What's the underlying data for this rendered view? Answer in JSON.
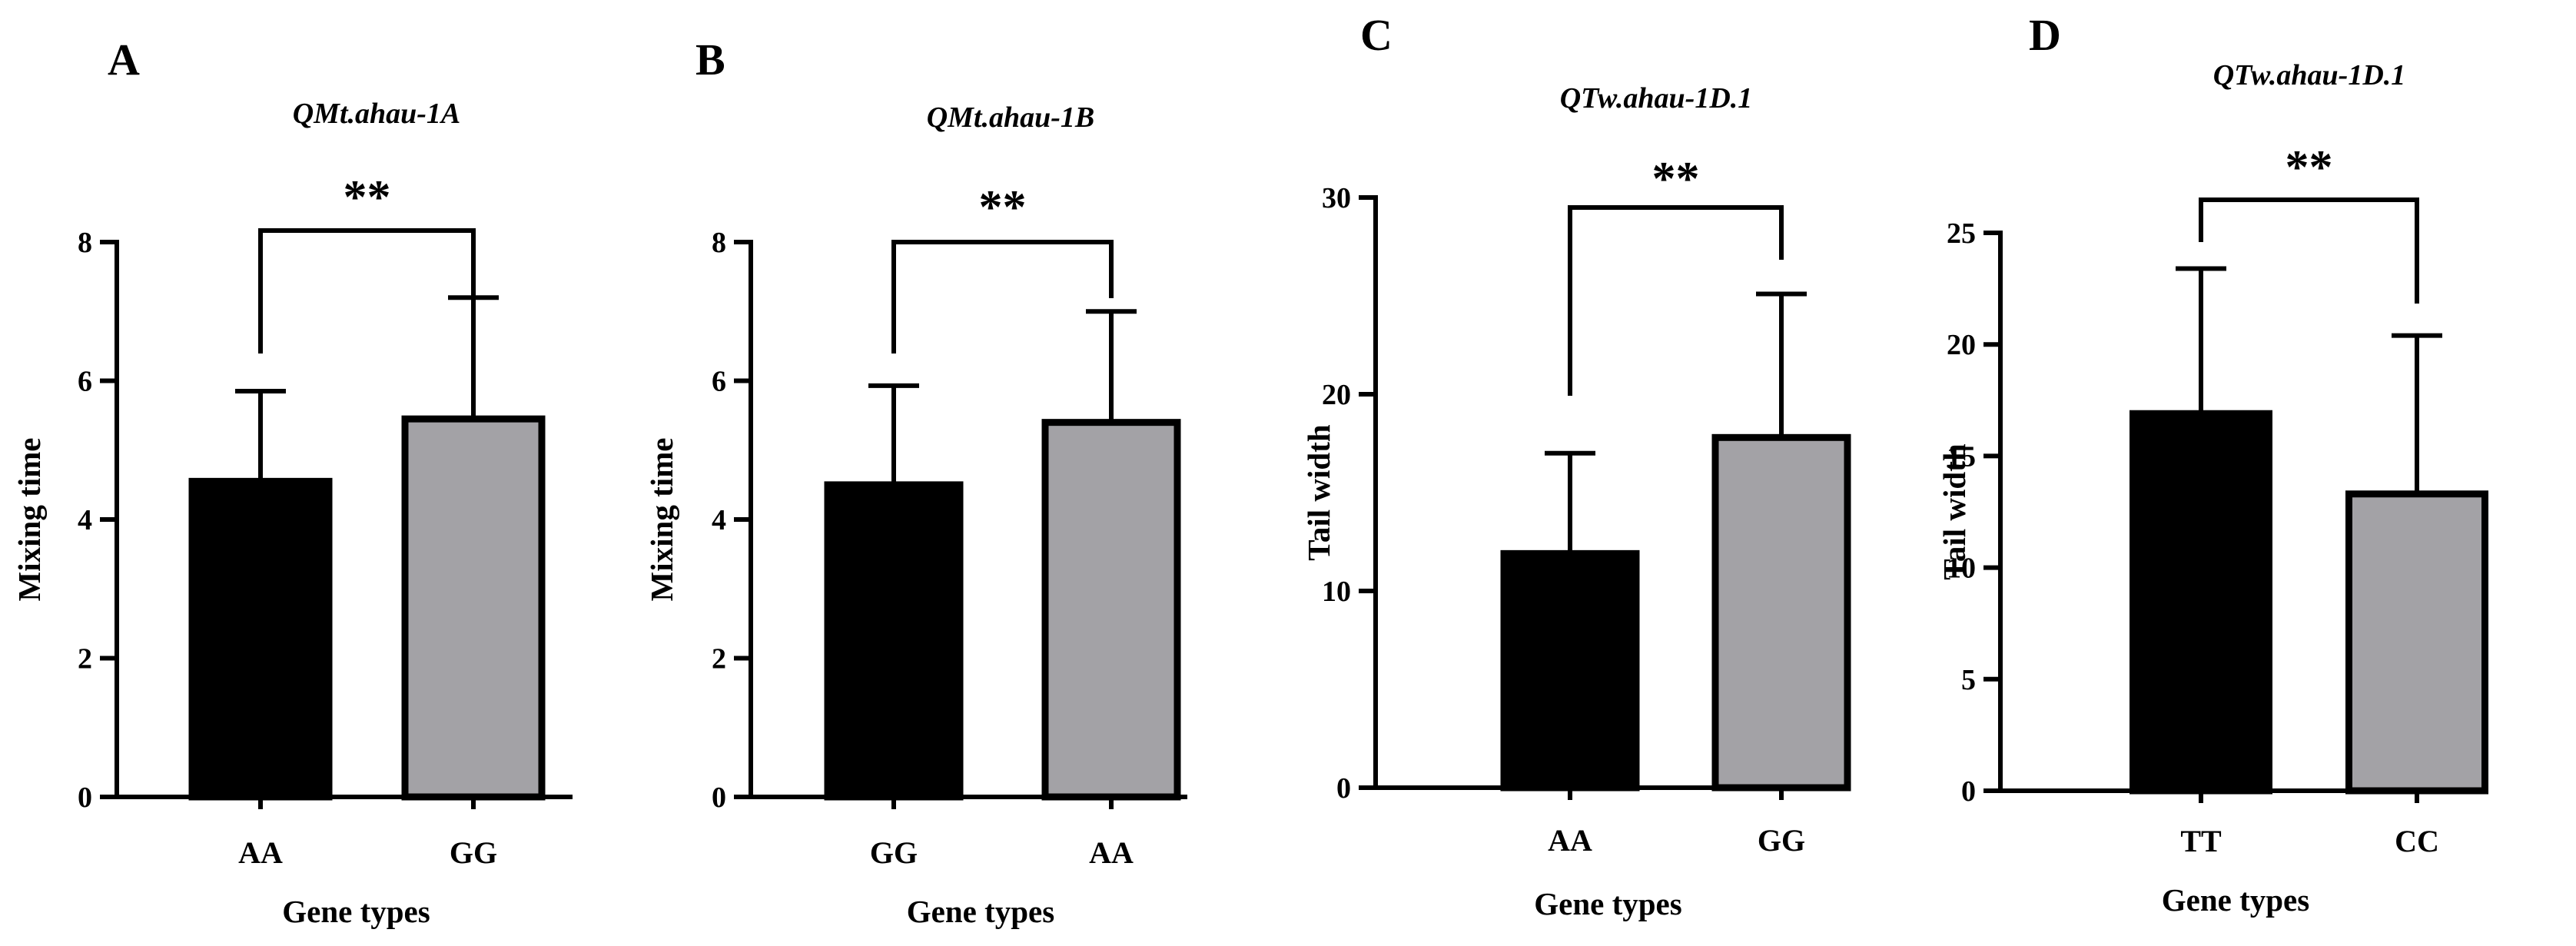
{
  "chart_data": [
    {
      "type": "bar",
      "panel": "A",
      "title": "QMt.ahau-1A",
      "xlabel": "Gene types",
      "ylabel": "Mixing time",
      "ylim": [
        0,
        8
      ],
      "yticks": [
        0,
        2,
        4,
        6,
        8
      ],
      "categories": [
        "AA",
        "GG"
      ],
      "values": [
        4.55,
        5.45
      ],
      "error": [
        1.3,
        1.75
      ],
      "colors": [
        "#000000",
        "#a3a2a6"
      ],
      "significance": "**"
    },
    {
      "type": "bar",
      "panel": "B",
      "title": "QMt.ahau-1B",
      "xlabel": "Gene types",
      "ylabel": "Mixing time",
      "ylim": [
        0,
        8
      ],
      "yticks": [
        0,
        2,
        4,
        6,
        8
      ],
      "categories": [
        "GG",
        "AA"
      ],
      "values": [
        4.5,
        5.4
      ],
      "error": [
        1.43,
        1.6
      ],
      "colors": [
        "#000000",
        "#a3a2a6"
      ],
      "significance": "**"
    },
    {
      "type": "bar",
      "panel": "C",
      "title": "QTw.ahau-1D.1",
      "xlabel": "Gene types",
      "ylabel": "Tail width",
      "ylim": [
        0,
        30
      ],
      "yticks": [
        0,
        10,
        20,
        30
      ],
      "categories": [
        "AA",
        "GG"
      ],
      "values": [
        11.9,
        17.8
      ],
      "error": [
        5.1,
        7.3
      ],
      "colors": [
        "#000000",
        "#a3a2a6"
      ],
      "significance": "**"
    },
    {
      "type": "bar",
      "panel": "D",
      "title": "QTw.ahau-1D.1",
      "xlabel": "Gene types",
      "ylabel": "Tail width",
      "ylim": [
        0,
        25
      ],
      "yticks": [
        0,
        5,
        10,
        15,
        20,
        25
      ],
      "categories": [
        "TT",
        "CC"
      ],
      "values": [
        16.9,
        13.3
      ],
      "error": [
        6.5,
        7.1
      ],
      "colors": [
        "#000000",
        "#a3a2a6"
      ],
      "significance": "**"
    }
  ]
}
